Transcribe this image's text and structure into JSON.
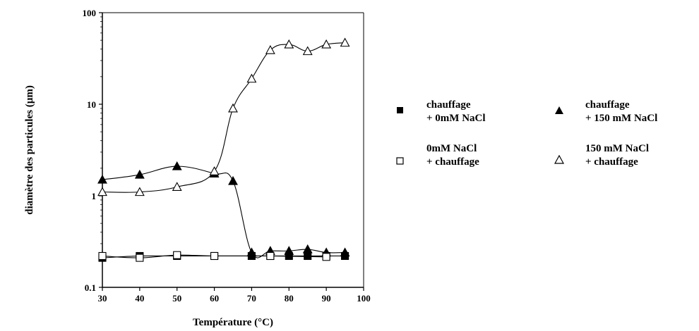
{
  "chart_data": {
    "type": "line",
    "title": "",
    "xlabel": "Température (°C)",
    "ylabel": "diamètre des particules (µm)",
    "xlim": [
      30,
      100
    ],
    "ylim": [
      0.1,
      100
    ],
    "yscale": "log",
    "x_ticks": [
      "30",
      "40",
      "50",
      "60",
      "70",
      "80",
      "90",
      "100"
    ],
    "y_ticks": [
      "0.1",
      "1",
      "10",
      "100"
    ],
    "grid": false,
    "legend_position": "right",
    "series": [
      {
        "name_lines": [
          "chauffage",
          "+ 0mM NaCl"
        ],
        "marker": "filled-square",
        "x": [
          30,
          40,
          50,
          60,
          70,
          75,
          80,
          85,
          90,
          95
        ],
        "y": [
          0.21,
          0.22,
          0.22,
          0.22,
          0.22,
          0.22,
          0.22,
          0.22,
          0.22,
          0.22
        ]
      },
      {
        "name_lines": [
          "chauffage",
          "+ 150 mM NaCl"
        ],
        "marker": "filled-triangle",
        "x": [
          30,
          40,
          50,
          60,
          65,
          70,
          75,
          80,
          85,
          90,
          95
        ],
        "y": [
          1.5,
          1.7,
          2.1,
          1.75,
          1.45,
          0.24,
          0.25,
          0.25,
          0.26,
          0.24,
          0.24
        ]
      },
      {
        "name_lines": [
          "0mM NaCl",
          "+ chauffage"
        ],
        "marker": "open-square",
        "x": [
          30,
          40,
          50,
          60,
          75,
          90
        ],
        "y": [
          0.22,
          0.21,
          0.225,
          0.22,
          0.22,
          0.215
        ]
      },
      {
        "name_lines": [
          "150 mM NaCl",
          "+ chauffage"
        ],
        "marker": "open-triangle",
        "x": [
          30,
          40,
          50,
          60,
          65,
          70,
          75,
          80,
          85,
          90,
          95
        ],
        "y": [
          1.1,
          1.1,
          1.25,
          1.85,
          9.0,
          19.0,
          39.0,
          45.0,
          38.0,
          45.0,
          47.0
        ]
      }
    ]
  }
}
